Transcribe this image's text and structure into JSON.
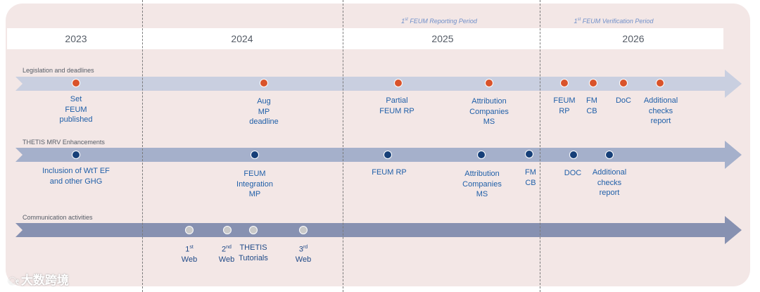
{
  "years": [
    "2023",
    "2024",
    "2025",
    "2026"
  ],
  "periods": [
    {
      "sup": "st",
      "text": " FEUM Reporting Period",
      "num": "1"
    },
    {
      "sup": "st",
      "text": " FEUM Verification Period",
      "num": "1"
    }
  ],
  "tracks": [
    {
      "title": "Legislation and deadlines",
      "color": "#d9532b",
      "events": [
        {
          "label": "Set\nFEUM\npublished"
        },
        {
          "label": "Aug\nMP\ndeadline"
        },
        {
          "label": "Partial\nFEUM RP"
        },
        {
          "label": "Attribution\nCompanies\nMS"
        },
        {
          "label": "FEUM\nRP"
        },
        {
          "label": "FM\nCB"
        },
        {
          "label": "DoC"
        },
        {
          "label": "Additional\nchecks\nreport"
        }
      ]
    },
    {
      "title": "THETIS MRV Enhancements",
      "color": "#163f78",
      "events": [
        {
          "label": "Inclusion of WtT EF\nand other GHG"
        },
        {
          "label": "FEUM\nIntegration\nMP"
        },
        {
          "label": "FEUM RP"
        },
        {
          "label": "Attribution\nCompanies\nMS"
        },
        {
          "label": "FM\nCB"
        },
        {
          "label": "DOC"
        },
        {
          "label": "Additional\nchecks\nreport"
        }
      ]
    },
    {
      "title": "Communication activities",
      "color": "#c9c9c9",
      "events": [
        {
          "num": "1",
          "sup": "st",
          "label": "Web"
        },
        {
          "num": "2",
          "sup": "nd",
          "label": "Web"
        },
        {
          "label": "THETIS\nTutorials"
        },
        {
          "num": "3",
          "sup": "rd",
          "label": "Web"
        }
      ]
    }
  ],
  "watermark": "大数跨境"
}
